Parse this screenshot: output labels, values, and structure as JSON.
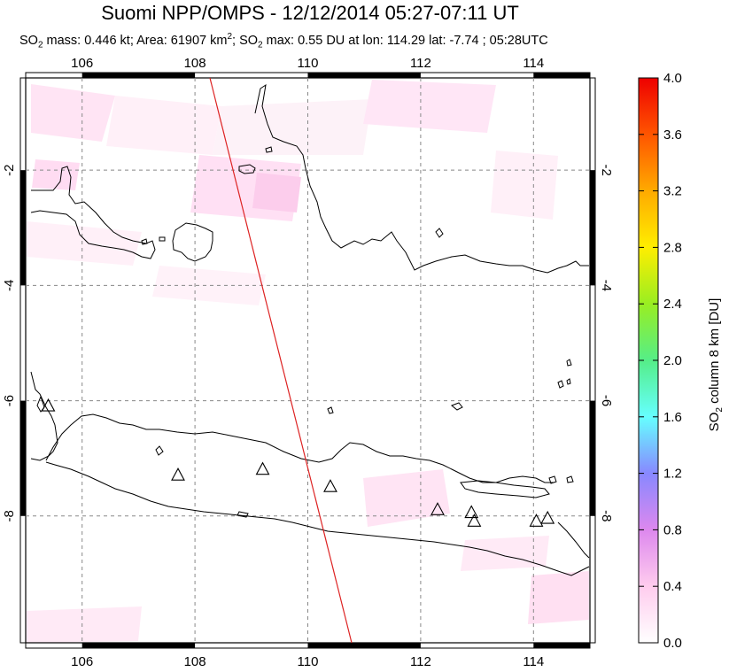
{
  "title": "Suomi NPP/OMPS - 12/12/2014 05:27-07:11 UT",
  "subtitle": {
    "mass_label": "SO",
    "mass_sub": "2",
    "mass_text": " mass: 0.446 kt; Area: 61907 km",
    "area_sup": "2",
    "so2_label": "; SO",
    "so2_sub": "2",
    "rest": " max: 0.55 DU at lon: 114.29 lat: -7.74 ; 05:28UTC"
  },
  "map": {
    "lon_ticks": [
      "106",
      "108",
      "110",
      "112",
      "114"
    ],
    "lat_ticks": [
      "-2",
      "-4",
      "-6",
      "-8"
    ],
    "lon_range": [
      105.0,
      115.0
    ],
    "lat_range": [
      -10.2,
      -0.4
    ],
    "orbit_line_color": "#dd2222",
    "volcano_markers": [
      {
        "lon": 105.4,
        "lat": -6.1
      },
      {
        "lon": 107.7,
        "lat": -7.3
      },
      {
        "lon": 109.2,
        "lat": -7.2
      },
      {
        "lon": 110.4,
        "lat": -7.5
      },
      {
        "lon": 112.3,
        "lat": -7.9
      },
      {
        "lon": 112.9,
        "lat": -7.95
      },
      {
        "lon": 112.95,
        "lat": -8.1
      },
      {
        "lon": 114.05,
        "lat": -8.1
      },
      {
        "lon": 114.25,
        "lat": -8.05
      }
    ]
  },
  "colorbar": {
    "ticks": [
      "0.0",
      "0.4",
      "0.8",
      "1.2",
      "1.6",
      "2.0",
      "2.4",
      "2.8",
      "3.2",
      "3.6",
      "4.0"
    ],
    "title_prefix": "SO",
    "title_sub": "2",
    "title_suffix": " column 8 km [DU]",
    "colors": [
      "#ffffff",
      "#ffccee",
      "#dd88ee",
      "#8888ff",
      "#66ffff",
      "#55ee88",
      "#99ee22",
      "#ffee00",
      "#ffaa00",
      "#ff5500",
      "#ee0000"
    ]
  }
}
